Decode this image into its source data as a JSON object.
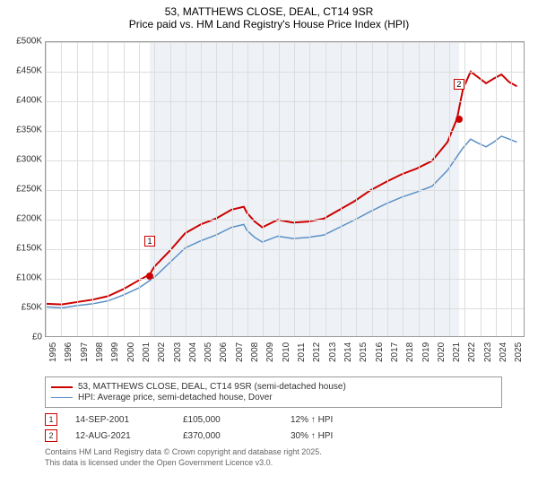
{
  "title_line1": "53, MATTHEWS CLOSE, DEAL, CT14 9SR",
  "title_line2": "Price paid vs. HM Land Registry's House Price Index (HPI)",
  "chart": {
    "type": "line",
    "x_start": 1995,
    "x_end": 2025.9,
    "x_ticks": [
      1995,
      1996,
      1997,
      1998,
      1999,
      2000,
      2001,
      2002,
      2003,
      2004,
      2005,
      2006,
      2007,
      2008,
      2009,
      2010,
      2011,
      2012,
      2013,
      2014,
      2015,
      2016,
      2017,
      2018,
      2019,
      2020,
      2021,
      2022,
      2023,
      2024,
      2025
    ],
    "y_min": 0,
    "y_max": 500000,
    "y_ticks": [
      0,
      50000,
      100000,
      150000,
      200000,
      250000,
      300000,
      350000,
      400000,
      450000,
      500000
    ],
    "y_tick_labels": [
      "£0",
      "£50K",
      "£100K",
      "£150K",
      "£200K",
      "£250K",
      "£300K",
      "£350K",
      "£400K",
      "£450K",
      "£500K"
    ],
    "background_color": "#ffffff",
    "grid_color": "#dddddd",
    "shaded_region": {
      "x_start": 2001.7,
      "x_end": 2021.62,
      "color": "#eef2f6"
    },
    "series": [
      {
        "name": "53, MATTHEWS CLOSE, DEAL, CT14 9SR (semi-detached house)",
        "color": "#cc0000",
        "line_width": 2,
        "data": [
          [
            1995,
            55000
          ],
          [
            1996,
            54000
          ],
          [
            1997,
            58000
          ],
          [
            1998,
            62000
          ],
          [
            1999,
            68000
          ],
          [
            2000,
            80000
          ],
          [
            2001,
            95000
          ],
          [
            2001.7,
            105000
          ],
          [
            2002,
            118000
          ],
          [
            2003,
            145000
          ],
          [
            2004,
            175000
          ],
          [
            2005,
            190000
          ],
          [
            2006,
            200000
          ],
          [
            2007,
            215000
          ],
          [
            2007.8,
            220000
          ],
          [
            2008,
            210000
          ],
          [
            2008.5,
            195000
          ],
          [
            2009,
            185000
          ],
          [
            2010,
            198000
          ],
          [
            2011,
            193000
          ],
          [
            2012,
            195000
          ],
          [
            2013,
            200000
          ],
          [
            2014,
            215000
          ],
          [
            2015,
            230000
          ],
          [
            2016,
            248000
          ],
          [
            2017,
            262000
          ],
          [
            2018,
            275000
          ],
          [
            2019,
            285000
          ],
          [
            2020,
            298000
          ],
          [
            2021,
            330000
          ],
          [
            2021.62,
            370000
          ],
          [
            2022,
            420000
          ],
          [
            2022.5,
            450000
          ],
          [
            2023,
            440000
          ],
          [
            2023.5,
            430000
          ],
          [
            2024,
            438000
          ],
          [
            2024.5,
            445000
          ],
          [
            2025,
            432000
          ],
          [
            2025.5,
            425000
          ]
        ]
      },
      {
        "name": "HPI: Average price, semi-detached house, Dover",
        "color": "#5b8fc7",
        "line_width": 1.5,
        "data": [
          [
            1995,
            50000
          ],
          [
            1996,
            48000
          ],
          [
            1997,
            52000
          ],
          [
            1998,
            55000
          ],
          [
            1999,
            60000
          ],
          [
            2000,
            70000
          ],
          [
            2001,
            82000
          ],
          [
            2002,
            100000
          ],
          [
            2003,
            125000
          ],
          [
            2004,
            150000
          ],
          [
            2005,
            162000
          ],
          [
            2006,
            172000
          ],
          [
            2007,
            185000
          ],
          [
            2007.8,
            190000
          ],
          [
            2008,
            180000
          ],
          [
            2008.5,
            168000
          ],
          [
            2009,
            160000
          ],
          [
            2010,
            170000
          ],
          [
            2011,
            166000
          ],
          [
            2012,
            168000
          ],
          [
            2013,
            172000
          ],
          [
            2014,
            185000
          ],
          [
            2015,
            198000
          ],
          [
            2016,
            212000
          ],
          [
            2017,
            225000
          ],
          [
            2018,
            236000
          ],
          [
            2019,
            245000
          ],
          [
            2020,
            255000
          ],
          [
            2021,
            282000
          ],
          [
            2022,
            320000
          ],
          [
            2022.5,
            335000
          ],
          [
            2023,
            328000
          ],
          [
            2023.5,
            322000
          ],
          [
            2024,
            330000
          ],
          [
            2024.5,
            340000
          ],
          [
            2025,
            335000
          ],
          [
            2025.5,
            330000
          ]
        ]
      }
    ],
    "markers": [
      {
        "id": "1",
        "x": 2001.7,
        "y": 105000,
        "color": "#cc0000",
        "box_y_offset": -45
      },
      {
        "id": "2",
        "x": 2021.62,
        "y": 370000,
        "color": "#cc0000",
        "box_y_offset": -45
      }
    ]
  },
  "legend": [
    {
      "color": "#cc0000",
      "thick": 2,
      "label": "53, MATTHEWS CLOSE, DEAL, CT14 9SR (semi-detached house)"
    },
    {
      "color": "#5b8fc7",
      "thick": 1.5,
      "label": "HPI: Average price, semi-detached house, Dover"
    }
  ],
  "data_points": [
    {
      "id": "1",
      "color": "#cc0000",
      "date": "14-SEP-2001",
      "price": "£105,000",
      "delta": "12% ↑ HPI"
    },
    {
      "id": "2",
      "color": "#cc0000",
      "date": "12-AUG-2021",
      "price": "£370,000",
      "delta": "30% ↑ HPI"
    }
  ],
  "credit_line1": "Contains HM Land Registry data © Crown copyright and database right 2025.",
  "credit_line2": "This data is licensed under the Open Government Licence v3.0."
}
